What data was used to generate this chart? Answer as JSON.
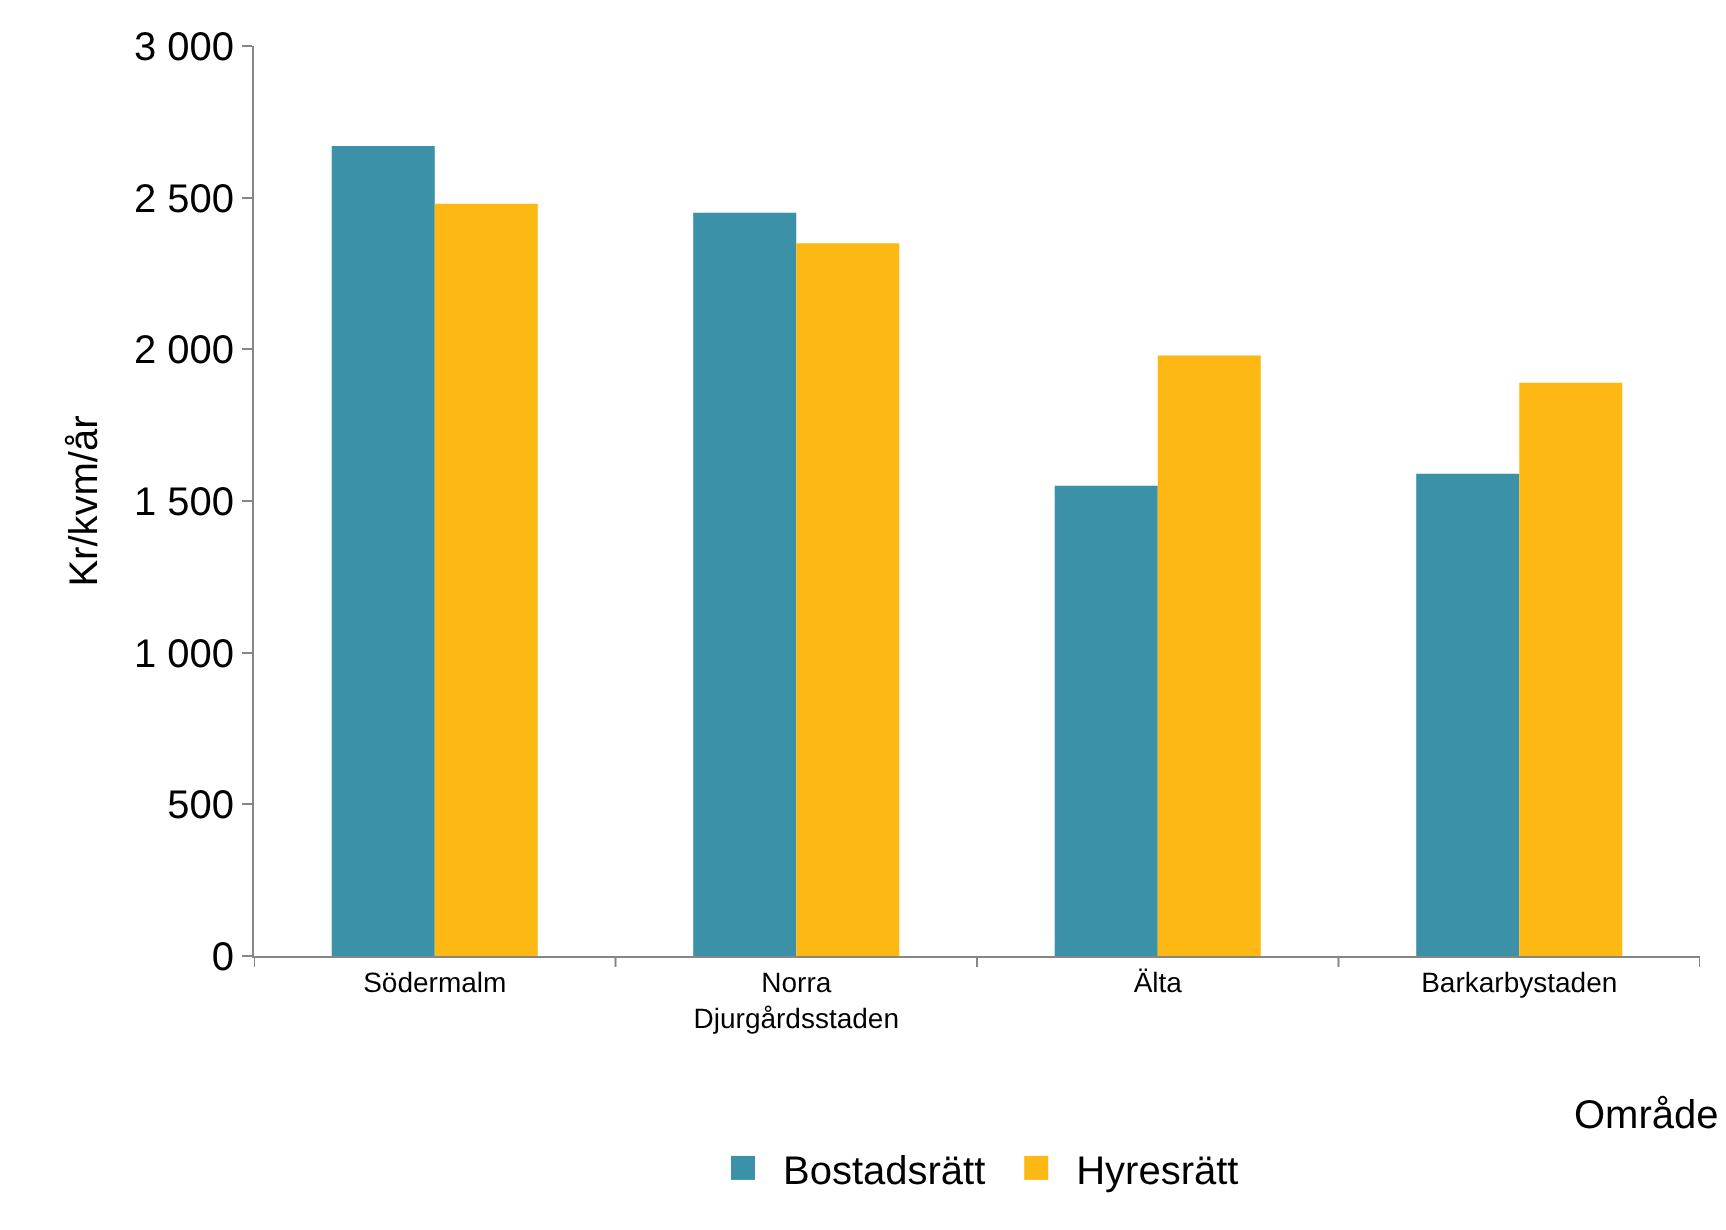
{
  "chart_data": {
    "type": "bar",
    "xlabel": "Område",
    "ylabel": "Kr/kvm/år",
    "categories": [
      "Södermalm",
      "Norra Djurgårdsstaden",
      "Älta",
      "Barkarbystaden"
    ],
    "series": [
      {
        "name": "Bostadsrätt",
        "color": "#3a91a8",
        "values": [
          2670,
          2450,
          1550,
          1590
        ]
      },
      {
        "name": "Hyresrätt",
        "color": "#fdb813",
        "values": [
          2480,
          2350,
          1980,
          1890
        ]
      }
    ],
    "ylim": [
      0,
      3000
    ],
    "yticks": [
      0,
      500,
      {
        "value": 1000,
        "label": "1 000"
      },
      {
        "value": 1500,
        "label": "1 500"
      },
      {
        "value": 2000,
        "label": "2 000"
      },
      {
        "value": 2500,
        "label": "2 500"
      },
      {
        "value": 3000,
        "label": "3 000"
      }
    ],
    "grid": false,
    "legend": "bottom"
  }
}
